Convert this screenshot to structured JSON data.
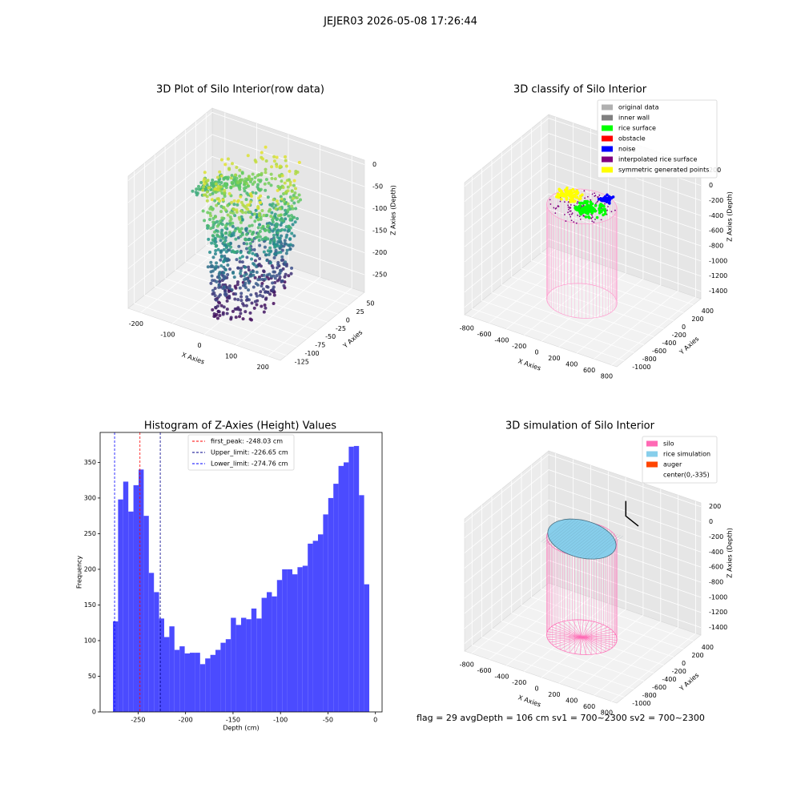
{
  "title": "JEJER03 2026-05-08 17:26:44",
  "chart_data": [
    {
      "type": "scatter3d",
      "title": "3D Plot of Silo Interior(row data)",
      "xlabel": "X Axies",
      "ylabel": "Y Axies",
      "zlabel": "Z Axies (Depth)",
      "xlim": [
        -240,
        240
      ],
      "ylim": [
        -140,
        65
      ],
      "zlim": [
        -290,
        10
      ],
      "xticks": [
        -200,
        -100,
        0,
        100,
        200
      ],
      "yticks": [
        -125,
        -100,
        -75,
        -50,
        -25,
        0,
        25,
        50
      ],
      "zticks": [
        -250,
        -200,
        -150,
        -100,
        -50,
        0
      ]
    },
    {
      "type": "scatter3d",
      "title": "3D classify of Silo Interior",
      "xlim": [
        -880,
        860
      ],
      "ylim": [
        -1150,
        550
      ],
      "zlim": [
        -1500,
        250
      ],
      "xlabel": "X Axies",
      "ylabel": "Y Axies",
      "zlabel": "Z Axies (Depth)",
      "xticks": [
        -800,
        -600,
        -400,
        -200,
        0,
        200,
        400,
        600,
        800
      ],
      "yticks": [
        -1000,
        -800,
        -600,
        -400,
        -200,
        0,
        200,
        400
      ],
      "zticks": [
        -1400,
        -1200,
        -1000,
        -800,
        -600,
        -400,
        -200,
        0,
        200
      ],
      "legend": [
        {
          "name": "original data",
          "color": "#b0b0b0"
        },
        {
          "name": "inner wall",
          "color": "#808080"
        },
        {
          "name": "rice surface",
          "color": "#00ff00"
        },
        {
          "name": "obstacle",
          "color": "#ff0000"
        },
        {
          "name": "noise",
          "color": "#0000ff"
        },
        {
          "name": "interpolated rice surface",
          "color": "#800080"
        },
        {
          "name": "symmetric generated points",
          "color": "#ffff00"
        }
      ]
    },
    {
      "type": "histogram",
      "title": "Histogram of Z-Axies (Height) Values",
      "xlabel": "Depth (cm)",
      "ylabel": "Frequency",
      "color": "#4b4bff",
      "bins": [
        -276.5,
        -271.1,
        -265.7,
        -260.3,
        -254.9,
        -249.5,
        -244.1,
        -238.7,
        -233.3,
        -227.9,
        -222.5,
        -217.1,
        -211.7,
        -206.3,
        -200.9,
        -195.5,
        -190.1,
        -184.7,
        -179.3,
        -173.9,
        -168.5,
        -163.1,
        -157.7,
        -152.3,
        -146.9,
        -141.5,
        -136.1,
        -130.7,
        -125.3,
        -119.9,
        -114.5,
        -109.1,
        -103.7,
        -98.3,
        -92.9,
        -87.5,
        -82.1,
        -76.7,
        -71.3,
        -65.9,
        -60.5,
        -55.1,
        -49.7,
        -44.3,
        -38.9,
        -33.5,
        -28.1,
        -22.7,
        -17.3,
        -11.9,
        -6.5
      ],
      "values": [
        127,
        298,
        323,
        281,
        318,
        340,
        275,
        195,
        168,
        131,
        105,
        120,
        87,
        92,
        82,
        83,
        83,
        67,
        75,
        80,
        87,
        97,
        102,
        132,
        122,
        132,
        130,
        145,
        131,
        160,
        168,
        162,
        185,
        200,
        200,
        193,
        203,
        205,
        236,
        240,
        249,
        277,
        300,
        320,
        345,
        350,
        372,
        373,
        304,
        179
      ],
      "xlim": [
        -290,
        7
      ],
      "ylim": [
        0,
        392
      ],
      "xticks": [
        -250,
        -200,
        -150,
        -100,
        -50,
        0
      ],
      "yticks": [
        0,
        50,
        100,
        150,
        200,
        250,
        300,
        350
      ],
      "vlines": [
        {
          "value": -248.03,
          "label": "first_peak: -248.03 cm",
          "color": "#ff0000"
        },
        {
          "value": -226.65,
          "label": "Upper_limit: -226.65 cm",
          "color": "#00008b"
        },
        {
          "value": -274.76,
          "label": "Lower_limit: -274.76 cm",
          "color": "#0000ff"
        }
      ]
    },
    {
      "type": "surface3d",
      "title": "3D simulation of Silo Interior",
      "xlim": [
        -880,
        860
      ],
      "ylim": [
        -1150,
        550
      ],
      "zlim": [
        -1500,
        250
      ],
      "xlabel": "X Axies",
      "ylabel": "Y Axies",
      "zlabel": "Z Axies (Depth)",
      "xticks": [
        -800,
        -600,
        -400,
        -200,
        0,
        200,
        400,
        600,
        800
      ],
      "yticks": [
        -1000,
        -800,
        -600,
        -400,
        -200,
        0,
        200,
        400
      ],
      "zticks": [
        -1400,
        -1200,
        -1000,
        -800,
        -600,
        -400,
        -200,
        0,
        200
      ],
      "legend": [
        {
          "name": "silo",
          "color": "#ff69b4"
        },
        {
          "name": "rice simulation",
          "color": "#87ceeb"
        },
        {
          "name": "auger",
          "color": "#ff4500"
        },
        {
          "name": "center(0,-335)",
          "color": "#ffffff"
        }
      ]
    }
  ],
  "footer": "flag = 29  avgDepth = 106 cm  sv1 = 700~2300  sv2 = 700~2300"
}
